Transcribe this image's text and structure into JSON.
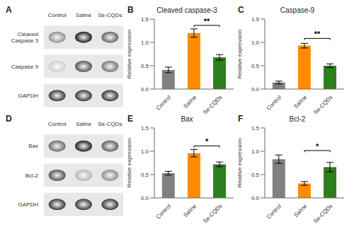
{
  "chart_data": [
    {
      "type": "heatmap",
      "panel_label": "A",
      "categories": [
        "Control",
        "Saline",
        "Se-CQDs"
      ],
      "row_categories": [
        "Cleaved\nCaspase 3",
        "Caspase 9",
        "GAPDH"
      ],
      "cells": [
        [
          0.55,
          0.1,
          0.38
        ],
        [
          0.8,
          0.3,
          0.45
        ],
        [
          0.2,
          0.2,
          0.2
        ]
      ]
    },
    {
      "type": "bar",
      "panel_label": "B",
      "title": "Cleaved caspase-3",
      "categories": [
        "Control",
        "Saline",
        "Se-CQDs"
      ],
      "values": [
        0.41,
        1.2,
        0.68
      ],
      "errors": [
        0.06,
        0.09,
        0.06
      ],
      "colors": [
        "#808080",
        "#FF8C00",
        "#2E7D1E"
      ],
      "ylabel": "Relative expression",
      "ylim": [
        0,
        1.5
      ],
      "yticks": [
        {
          "value": 0,
          "label": "0.0"
        },
        0.5,
        {
          "value": 1.0,
          "label": "1.0"
        },
        1.5
      ],
      "annotations": [
        {
          "type": "bracket",
          "x": [
            "Saline",
            "Se-CQDs"
          ],
          "y": 1.33,
          "text": "**"
        }
      ]
    },
    {
      "type": "bar",
      "panel_label": "C",
      "title": "Caspase-9",
      "categories": [
        "Control",
        "Saline",
        "Se-CQDs"
      ],
      "values": [
        0.14,
        0.93,
        0.5
      ],
      "errors": [
        0.03,
        0.05,
        0.04
      ],
      "colors": [
        "#808080",
        "#FF8C00",
        "#2E7D1E"
      ],
      "ylabel": "Relative expression",
      "ylim": [
        0,
        1.5
      ],
      "yticks": [
        {
          "value": 0,
          "label": "0.0"
        },
        0.5,
        {
          "value": 1.0,
          "label": "1.0"
        },
        1.5
      ],
      "annotations": [
        {
          "type": "bracket",
          "x": [
            "Saline",
            "Se-CQDs"
          ],
          "y": 1.05,
          "text": "**"
        }
      ]
    },
    {
      "type": "heatmap",
      "panel_label": "D",
      "categories": [
        "Control",
        "Saline",
        "Se-CQDs"
      ],
      "row_categories": [
        "Bax",
        "Bcl-2",
        "GAPDH"
      ],
      "cells": [
        [
          0.4,
          0.1,
          0.35
        ],
        [
          0.3,
          0.7,
          0.55
        ],
        [
          0.2,
          0.2,
          0.2
        ]
      ]
    },
    {
      "type": "bar",
      "panel_label": "E",
      "title": "Bax",
      "categories": [
        "Control",
        "Saline",
        "Se-CQDs"
      ],
      "values": [
        0.53,
        0.96,
        0.72
      ],
      "errors": [
        0.04,
        0.08,
        0.05
      ],
      "colors": [
        "#808080",
        "#FF8C00",
        "#2E7D1E"
      ],
      "ylabel": "Relative expression",
      "ylim": [
        0,
        1.5
      ],
      "yticks": [
        {
          "value": 0,
          "label": "0.0"
        },
        0.5,
        {
          "value": 1.0,
          "label": "1.0"
        },
        1.5
      ],
      "annotations": [
        {
          "type": "bracket",
          "x": [
            "Saline",
            "Se-CQDs"
          ],
          "y": 1.08,
          "text": "*"
        }
      ]
    },
    {
      "type": "bar",
      "panel_label": "F",
      "title": "Bcl-2",
      "categories": [
        "Control",
        "Saline",
        "Se-CQDs"
      ],
      "values": [
        0.83,
        0.31,
        0.66
      ],
      "errors": [
        0.09,
        0.04,
        0.1
      ],
      "colors": [
        "#808080",
        "#FF8C00",
        "#2E7D1E"
      ],
      "ylabel": "Relative expression",
      "ylim": [
        0,
        1.5
      ],
      "yticks": [
        {
          "value": 0,
          "label": "0.0"
        },
        0.5,
        {
          "value": 1.0,
          "label": "1.0"
        },
        1.5
      ],
      "annotations": [
        {
          "type": "bracket",
          "x": [
            "Saline",
            "Se-CQDs"
          ],
          "y": 0.98,
          "text": "*"
        }
      ]
    }
  ]
}
